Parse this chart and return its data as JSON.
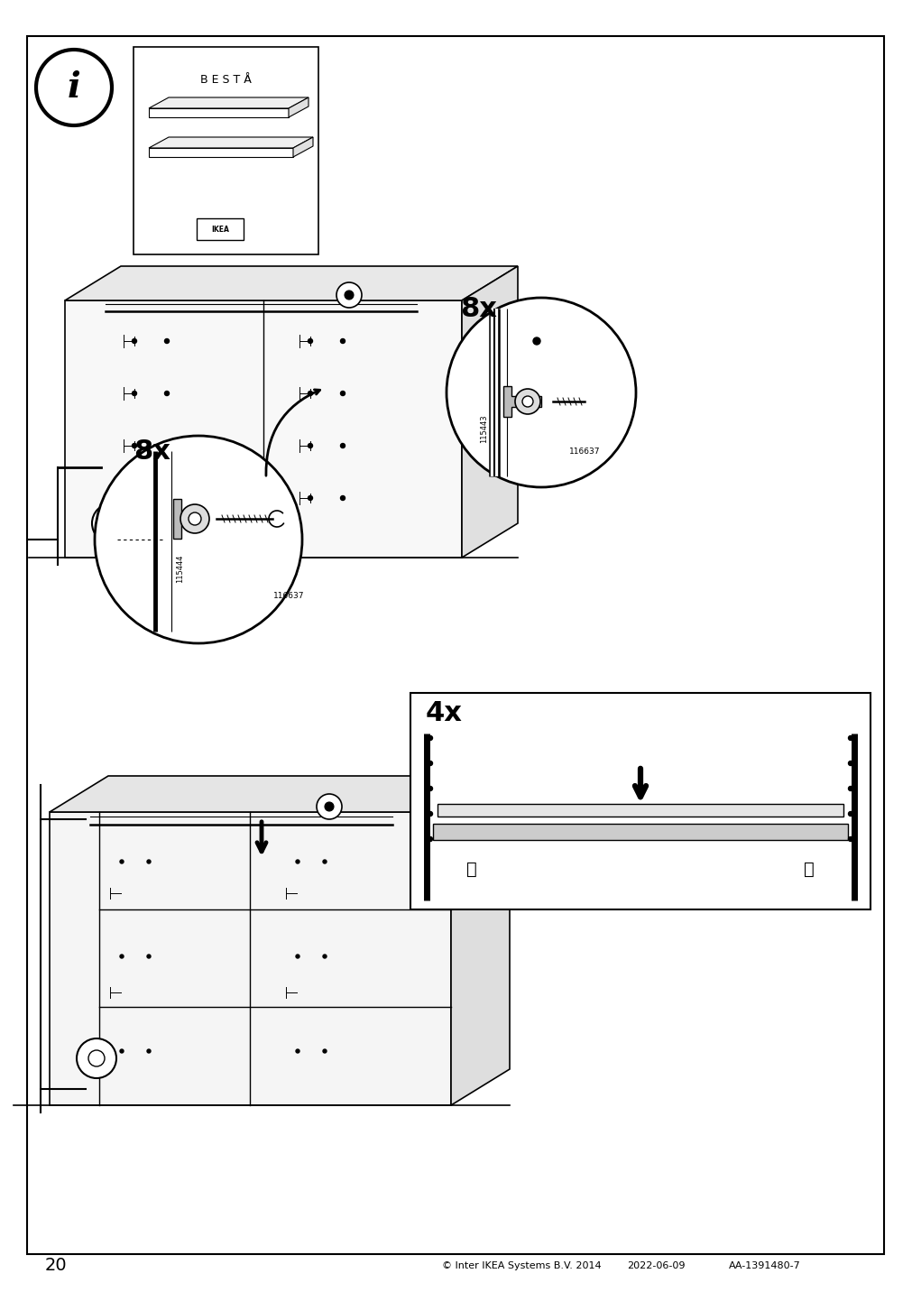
{
  "page_number": "20",
  "copyright_text": "© Inter IKEA Systems B.V. 2014",
  "date_text": "2022-06-09",
  "code_text": "AA-1391480-7",
  "background_color": "#ffffff",
  "border_color": "#000000",
  "text_color": "#000000",
  "besta_text": "B E S T Å",
  "count_8x_left": "8x",
  "count_8x_right": "8x",
  "count_4x": "4x",
  "part_115444": "115444",
  "part_116637_left": "116637",
  "part_115443": "115443",
  "part_116637_right": "116637"
}
